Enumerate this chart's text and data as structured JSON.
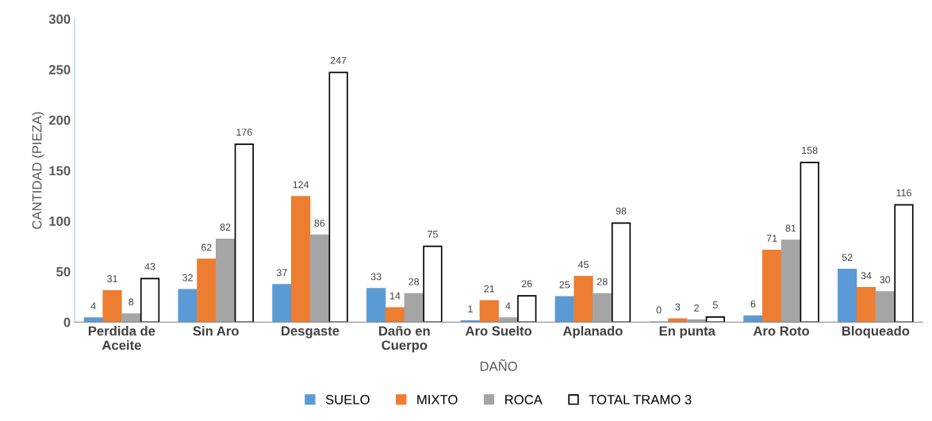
{
  "chart_data": {
    "type": "bar",
    "xlabel": "DAÑO",
    "ylabel": "CANTIDAD (PIEZA)",
    "categories": [
      "Perdida de\nAceite",
      "Sin Aro",
      "Desgaste",
      "Daño en\nCuerpo",
      "Aro Suelto",
      "Aplanado",
      "En punta",
      "Aro Roto",
      "Bloqueado"
    ],
    "series": [
      {
        "name": "SUELO",
        "color": "#5b9bd5",
        "values": [
          4,
          32,
          37,
          33,
          1,
          25,
          0,
          6,
          52
        ]
      },
      {
        "name": "MIXTO",
        "color": "#ed7d31",
        "values": [
          31,
          62,
          124,
          14,
          21,
          45,
          3,
          71,
          34
        ]
      },
      {
        "name": "ROCA",
        "color": "#a5a5a5",
        "values": [
          8,
          82,
          86,
          28,
          4,
          28,
          2,
          81,
          30
        ]
      },
      {
        "name": "TOTAL TRAMO 3",
        "color": "#ffffff",
        "values": [
          43,
          176,
          247,
          75,
          26,
          98,
          5,
          158,
          116
        ]
      }
    ],
    "ylim": [
      0,
      300
    ],
    "yticks": [
      0,
      50,
      100,
      150,
      200,
      250,
      300
    ],
    "data_labels": true,
    "grid": false,
    "legend": "bottom"
  }
}
